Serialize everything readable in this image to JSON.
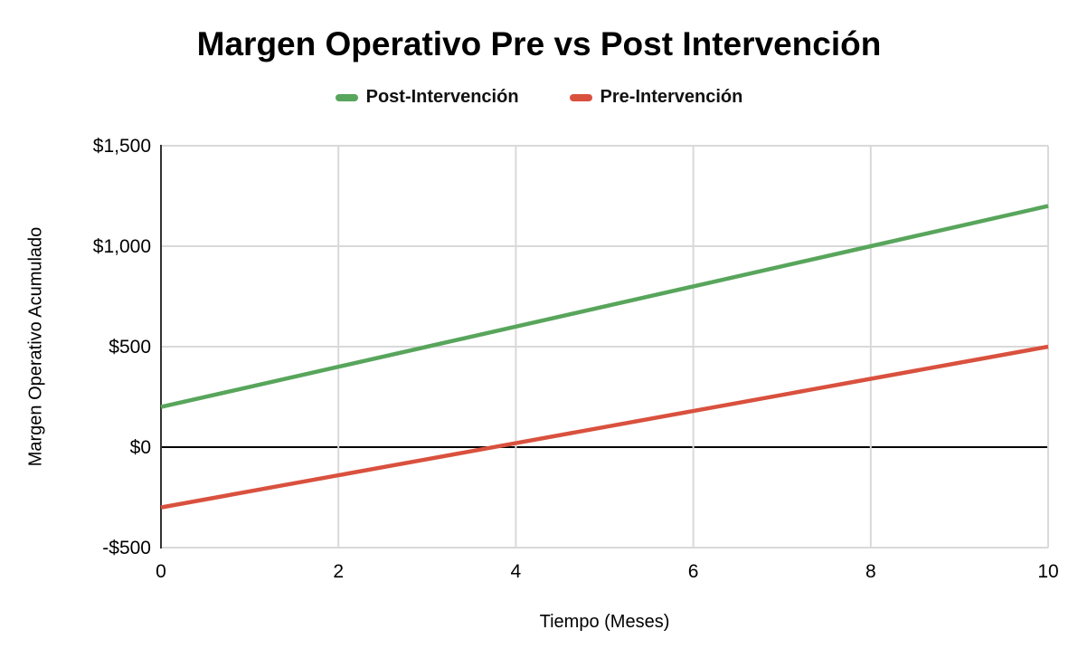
{
  "chart_data": {
    "type": "line",
    "title": "Margen Operativo Pre vs Post Intervención",
    "xlabel": "Tiempo (Meses)",
    "ylabel": "Margen Operativo Acumulado",
    "x": [
      0,
      1,
      2,
      3,
      4,
      5,
      6,
      7,
      8,
      9,
      10
    ],
    "series": [
      {
        "name": "Post-Intervención",
        "color": "#58a55c",
        "values": [
          200,
          300,
          400,
          500,
          600,
          700,
          800,
          900,
          1000,
          1100,
          1200
        ]
      },
      {
        "name": "Pre-Intervención",
        "color": "#d9513e",
        "values": [
          -300,
          -220,
          -140,
          -60,
          20,
          100,
          180,
          260,
          340,
          420,
          500
        ]
      }
    ],
    "xlim": [
      0,
      10
    ],
    "ylim": [
      -500,
      1500
    ],
    "x_ticks": [
      0,
      2,
      4,
      6,
      8,
      10
    ],
    "y_ticks": [
      {
        "value": 1500,
        "label": "$1,500"
      },
      {
        "value": 1000,
        "label": "$1,000"
      },
      {
        "value": 500,
        "label": "$500"
      },
      {
        "value": 0,
        "label": "$0"
      },
      {
        "value": -500,
        "label": "-$500"
      }
    ],
    "grid": true,
    "legend_position": "top",
    "zero_line": true
  },
  "colors": {
    "grid": "#d9d9d9",
    "zero_line": "#000000",
    "axis": "#333333",
    "text": "#000000",
    "background": "#ffffff"
  }
}
